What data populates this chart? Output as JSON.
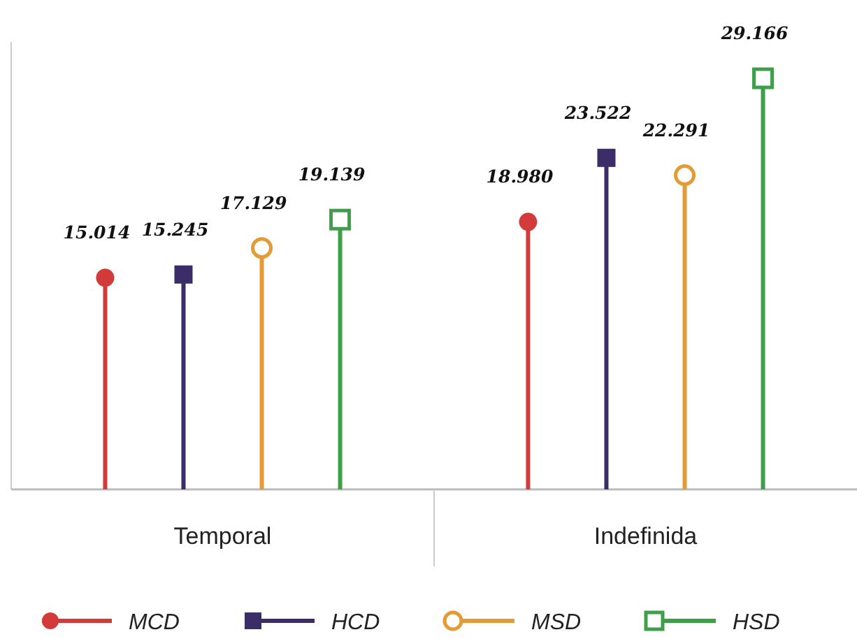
{
  "chart_data": {
    "type": "lollipop",
    "categories": [
      "Temporal",
      "Indefinida"
    ],
    "series": [
      {
        "name": "MCD",
        "color": "#d33b3b",
        "marker": "circle",
        "values": [
          15014,
          18980
        ],
        "value_labels": [
          "15.014",
          "18.980"
        ]
      },
      {
        "name": "HCD",
        "color": "#3a2d68",
        "marker": "square",
        "values": [
          15245,
          23522
        ],
        "value_labels": [
          "15.245",
          "23.522"
        ]
      },
      {
        "name": "MSD",
        "color": "#e49a35",
        "marker": "circle",
        "values": [
          17129,
          22291
        ],
        "value_labels": [
          "17.129",
          "22.291"
        ]
      },
      {
        "name": "HSD",
        "color": "#3e9e4a",
        "marker": "square",
        "values": [
          19139,
          29166
        ],
        "value_labels": [
          "19.139",
          "29.166"
        ]
      }
    ],
    "legend": "bottom"
  }
}
